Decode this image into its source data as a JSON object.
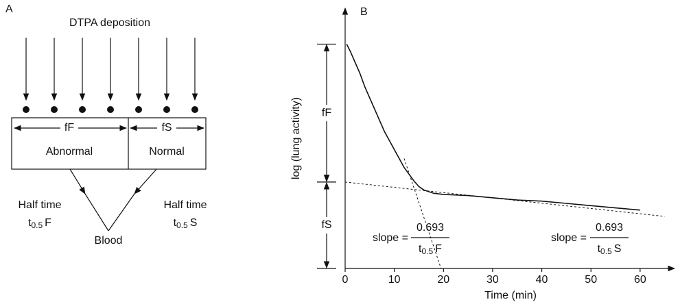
{
  "panel_a": {
    "label": "A",
    "title": "DTPA deposition",
    "fast_label": "fF",
    "slow_label": "fS",
    "left_region": "Abnormal",
    "right_region": "Normal",
    "left_half_time": {
      "text": "Half time",
      "base": "t",
      "subscript": "0.5",
      "suffix": "F"
    },
    "right_half_time": {
      "text": "Half time",
      "base": "t",
      "subscript": "0.5",
      "suffix": "S"
    },
    "sink": "Blood"
  },
  "chart_data": {
    "type": "line",
    "panel_label": "B",
    "ylabel": "log (lung activity)",
    "xlabel": "Time (min)",
    "xlim": [
      0,
      67
    ],
    "ylim": [
      0,
      1.16
    ],
    "xticks": [
      0,
      10,
      20,
      30,
      40,
      50,
      60
    ],
    "series": [
      {
        "color": "#111111",
        "x": [
          0.3,
          1,
          2,
          3,
          4,
          5,
          6,
          7,
          8,
          9,
          10,
          11,
          12,
          13,
          14,
          15,
          16,
          18,
          20,
          25,
          30,
          35,
          40,
          45,
          50,
          55,
          60
        ],
        "values": [
          1.0,
          0.97,
          0.92,
          0.87,
          0.81,
          0.76,
          0.71,
          0.66,
          0.61,
          0.57,
          0.53,
          0.49,
          0.45,
          0.42,
          0.39,
          0.365,
          0.35,
          0.335,
          0.33,
          0.325,
          0.315,
          0.305,
          0.3,
          0.29,
          0.28,
          0.27,
          0.26
        ]
      },
      {
        "color": "#111111",
        "dashed": true,
        "x": [
          12,
          19.5
        ],
        "values": [
          0.49,
          0
        ]
      },
      {
        "color": "#111111",
        "dashed": true,
        "x": [
          0,
          65
        ],
        "values": [
          0.385,
          0.232
        ]
      }
    ],
    "levels": [
      {
        "label": "fF",
        "from": 0.385,
        "to": 1.0
      },
      {
        "label": "fS",
        "from": 0,
        "to": 0.385
      }
    ],
    "annotations": [
      {
        "text": "slope =",
        "numerator": "0.693",
        "base": "t",
        "subscript": "0.5",
        "suffix": "F"
      },
      {
        "text": "slope =",
        "numerator": "0.693",
        "base": "t",
        "subscript": "0.5",
        "suffix": "S"
      }
    ]
  }
}
